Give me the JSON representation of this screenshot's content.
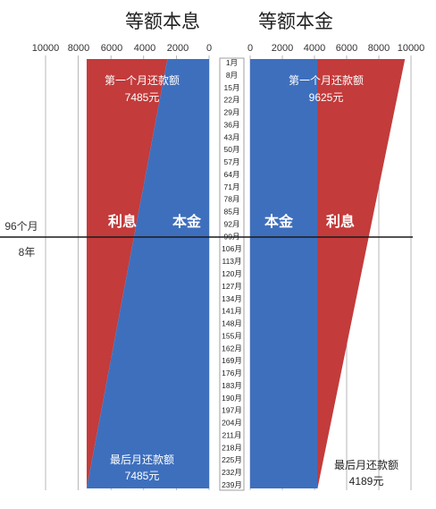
{
  "chart_data": [
    {
      "type": "area",
      "title": "等额本息",
      "x_direction": "reversed",
      "xlim": [
        0,
        10000
      ],
      "x_ticks": [
        "10000",
        "8000",
        "6000",
        "4000",
        "2000",
        "0"
      ],
      "series": [
        {
          "name": "本金",
          "color": "#3e6fbd",
          "month": [
            1,
            240
          ],
          "values": [
            2550,
            7485
          ]
        },
        {
          "name": "利息",
          "color": "#c33b3b",
          "month": [
            1,
            240
          ],
          "values": [
            4935,
            0
          ]
        }
      ],
      "monthly_payment": 7485,
      "annotations": [
        {
          "text": "第一个月还款额",
          "value": "7485元"
        },
        {
          "text": "最后月还款额",
          "value": "7485元"
        }
      ]
    },
    {
      "type": "area",
      "title": "等额本金",
      "xlim": [
        0,
        10000
      ],
      "x_ticks": [
        "0",
        "2000",
        "4000",
        "6000",
        "8000",
        "10000"
      ],
      "series": [
        {
          "name": "本金",
          "color": "#3e6fbd",
          "month": [
            1,
            240
          ],
          "values": [
            4167,
            4167
          ]
        },
        {
          "name": "利息",
          "color": "#c33b3b",
          "month": [
            1,
            240
          ],
          "values": [
            5458,
            22
          ]
        }
      ],
      "annotations": [
        {
          "text": "第一个月还款额",
          "value": "9625元"
        },
        {
          "text": "最后月还款额",
          "value": "4189元"
        }
      ]
    }
  ],
  "month_axis": {
    "ticks": [
      "1月",
      "8月",
      "15月",
      "22月",
      "29月",
      "36月",
      "43月",
      "50月",
      "57月",
      "64月",
      "71月",
      "78月",
      "85月",
      "92月",
      "99月",
      "106月",
      "113月",
      "120月",
      "127月",
      "134月",
      "141月",
      "148月",
      "155月",
      "162月",
      "169月",
      "176月",
      "183月",
      "190月",
      "197月",
      "204月",
      "211月",
      "218月",
      "225月",
      "232月",
      "239月"
    ]
  },
  "marker": {
    "month": 96,
    "label": "96个月",
    "sublabel": "8年"
  }
}
